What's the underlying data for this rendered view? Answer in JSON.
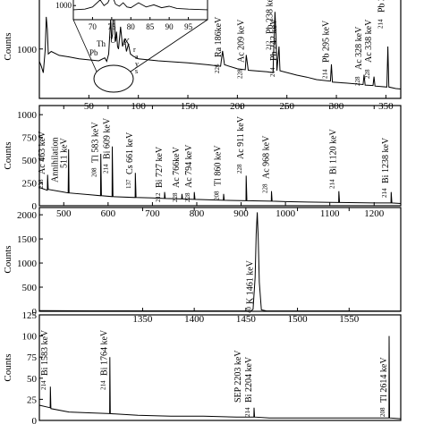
{
  "chart_data": [
    {
      "type": "line",
      "panel": "a",
      "ylabel": "Counts",
      "xlim": [
        0,
        365
      ],
      "ylim": [
        0,
        2100
      ],
      "x_ticks": [
        50,
        100,
        150,
        200,
        250,
        300,
        350
      ],
      "y_ticks": [
        1000
      ],
      "series": [
        {
          "points": [
            [
              0,
              750
            ],
            [
              2,
              650
            ],
            [
              4,
              520
            ],
            [
              6,
              1000
            ],
            [
              7,
              1650
            ],
            [
              8,
              1400
            ],
            [
              9,
              900
            ],
            [
              12,
              950
            ],
            [
              20,
              870
            ],
            [
              30,
              840
            ],
            [
              40,
              800
            ],
            [
              50,
              780
            ],
            [
              60,
              760
            ],
            [
              66,
              820
            ],
            [
              68,
              750
            ],
            [
              70,
              900
            ],
            [
              72,
              1600
            ],
            [
              73,
              1200
            ],
            [
              74,
              1300
            ],
            [
              75,
              2100
            ],
            [
              76,
              1500
            ],
            [
              77,
              1150
            ],
            [
              78,
              1350
            ],
            [
              79,
              1050
            ],
            [
              80,
              1000
            ],
            [
              82,
              1450
            ],
            [
              84,
              1050
            ],
            [
              86,
              1200
            ],
            [
              88,
              950
            ],
            [
              90,
              1100
            ],
            [
              92,
              900
            ],
            [
              95,
              850
            ],
            [
              100,
              800
            ],
            [
              120,
              760
            ],
            [
              150,
              720
            ],
            [
              170,
              680
            ],
            [
              183,
              650
            ],
            [
              185,
              960
            ],
            [
              187,
              680
            ],
            [
              200,
              600
            ],
            [
              208,
              580
            ],
            [
              209,
              880
            ],
            [
              211,
              570
            ],
            [
              230,
              540
            ],
            [
              236,
              520
            ],
            [
              238,
              1750
            ],
            [
              239,
              1300
            ],
            [
              240,
              560
            ],
            [
              242,
              1050
            ],
            [
              243,
              560
            ],
            [
              260,
              470
            ],
            [
              270,
              430
            ],
            [
              280,
              380
            ],
            [
              294,
              350
            ],
            [
              295,
              690
            ],
            [
              296,
              330
            ],
            [
              310,
              310
            ],
            [
              327,
              280
            ],
            [
              328,
              480
            ],
            [
              329,
              270
            ],
            [
              337,
              260
            ],
            [
              338,
              440
            ],
            [
              339,
              250
            ],
            [
              345,
              240
            ],
            [
              351,
              230
            ],
            [
              352,
              1050
            ],
            [
              353,
              230
            ],
            [
              360,
              200
            ],
            [
              365,
              190
            ]
          ]
        }
      ],
      "inset": {
        "xlim": [
          65,
          100
        ],
        "ylim": [
          0,
          1900
        ],
        "x_ticks": [
          70,
          75,
          80,
          85,
          90,
          95
        ],
        "y_ticks": [
          1000
        ],
        "points": [
          [
            65,
            700
          ],
          [
            68,
            750
          ],
          [
            70,
            900
          ],
          [
            72,
            1400
          ],
          [
            73,
            1000
          ],
          [
            74,
            1200
          ],
          [
            75,
            1800
          ],
          [
            76,
            1100
          ],
          [
            77,
            950
          ],
          [
            78,
            1200
          ],
          [
            79,
            900
          ],
          [
            80,
            850
          ],
          [
            82,
            1200
          ],
          [
            84,
            900
          ],
          [
            86,
            1050
          ],
          [
            88,
            850
          ],
          [
            90,
            950
          ],
          [
            92,
            800
          ],
          [
            95,
            750
          ],
          [
            100,
            700
          ]
        ]
      },
      "annotations": [
        "Pb",
        "Th",
        "U",
        "X",
        "r",
        "a",
        "y",
        "s",
        "Ra 186keV",
        "Ac 209 keV",
        "Pb 238 keV",
        "Pb 242 keV",
        "Pb 295 keV",
        "Ac 328 keV",
        "Ac 338 keV",
        "Pb 351 keV"
      ],
      "superscripts": [
        "226",
        "228",
        "212",
        "214",
        "214",
        "228",
        "228",
        "214"
      ]
    },
    {
      "type": "line",
      "panel": "b",
      "ylabel": "Counts",
      "xlim": [
        445,
        1260
      ],
      "ylim": [
        0,
        1100
      ],
      "x_ticks": [
        500,
        600,
        700,
        800,
        900,
        1000,
        1100,
        1200
      ],
      "y_ticks": [
        0,
        250,
        500,
        750,
        1000
      ],
      "series": [
        {
          "points": [
            [
              445,
              200
            ],
            [
              463,
              170
            ],
            [
              463.5,
              340
            ],
            [
              465,
              180
            ],
            [
              500,
              150
            ],
            [
              510,
              140
            ],
            [
              511,
              620
            ],
            [
              512,
              140
            ],
            [
              560,
              120
            ],
            [
              583,
              110
            ],
            [
              583.5,
              570
            ],
            [
              585,
              110
            ],
            [
              609,
              100
            ],
            [
              609.5,
              650
            ],
            [
              611,
              100
            ],
            [
              661,
              90
            ],
            [
              661.5,
              360
            ],
            [
              663,
              90
            ],
            [
              700,
              85
            ],
            [
              727,
              80
            ],
            [
              727.5,
              150
            ],
            [
              729,
              80
            ],
            [
              766,
              75
            ],
            [
              766.5,
              130
            ],
            [
              768,
              75
            ],
            [
              794,
              70
            ],
            [
              794.5,
              150
            ],
            [
              796,
              70
            ],
            [
              860,
              60
            ],
            [
              860.5,
              130
            ],
            [
              862,
              60
            ],
            [
              911,
              55
            ],
            [
              911.5,
              330
            ],
            [
              913,
              55
            ],
            [
              968,
              50
            ],
            [
              968.5,
              160
            ],
            [
              970,
              50
            ],
            [
              1000,
              45
            ],
            [
              1050,
              40
            ],
            [
              1120,
              35
            ],
            [
              1120.5,
              160
            ],
            [
              1122,
              35
            ],
            [
              1200,
              30
            ],
            [
              1238,
              30
            ],
            [
              1238.5,
              150
            ],
            [
              1240,
              30
            ],
            [
              1260,
              25
            ]
          ]
        }
      ],
      "annotations": [
        "Ac 463 keV",
        "Annihilation 511 keV",
        "Tl 583 keV",
        "Bi 609 keV",
        "Cs 661 keV",
        "Bi 727 keV",
        "Ac 766keV",
        "Ac 794 keV",
        "Tl 860 keV",
        "Ac 911 keV",
        "Ac 968 keV",
        "Bi 1120 keV",
        "Bi 1238 keV"
      ],
      "superscripts": [
        "228",
        "208",
        "214",
        "137",
        "212",
        "228",
        "228",
        "208",
        "228",
        "228",
        "214",
        "214"
      ]
    },
    {
      "type": "line",
      "panel": "c",
      "ylabel": "Counts",
      "xlim": [
        1250,
        1600
      ],
      "ylim": [
        0,
        2150
      ],
      "x_ticks": [
        1350,
        1400,
        1450,
        1500,
        1550
      ],
      "y_ticks": [
        0,
        500,
        1000,
        1500,
        2000
      ],
      "series": [
        {
          "points": [
            [
              1250,
              15
            ],
            [
              1300,
              10
            ],
            [
              1455,
              8
            ],
            [
              1457,
              40
            ],
            [
              1459,
              700
            ],
            [
              1460,
              1600
            ],
            [
              1461,
              2050
            ],
            [
              1462,
              1500
            ],
            [
              1463,
              600
            ],
            [
              1465,
              30
            ],
            [
              1470,
              8
            ],
            [
              1600,
              5
            ]
          ]
        }
      ],
      "annotations": [
        "K 1461 keV"
      ],
      "superscripts": [
        "40"
      ]
    },
    {
      "type": "line",
      "panel": "d",
      "ylabel": "Counts",
      "xlim": [
        1550,
        2650
      ],
      "ylim": [
        0,
        125
      ],
      "y_ticks": [
        0,
        25,
        50,
        75,
        100,
        125
      ],
      "series": [
        {
          "points": [
            [
              1550,
              18
            ],
            [
              1583,
              15
            ],
            [
              1583.5,
              40
            ],
            [
              1585,
              14
            ],
            [
              1640,
              10
            ],
            [
              1700,
              9
            ],
            [
              1764,
              8
            ],
            [
              1764.5,
              75
            ],
            [
              1766,
              8
            ],
            [
              1850,
              6
            ],
            [
              1950,
              5
            ],
            [
              2050,
              5
            ],
            [
              2150,
              4
            ],
            [
              2203,
              4
            ],
            [
              2203.5,
              15
            ],
            [
              2205,
              4
            ],
            [
              2250,
              3
            ],
            [
              2400,
              3
            ],
            [
              2550,
              3
            ],
            [
              2614,
              3
            ],
            [
              2614.5,
              100
            ],
            [
              2616,
              3
            ],
            [
              2650,
              2
            ]
          ]
        }
      ],
      "annotations": [
        "Bi 1583 keV",
        "Bi 1764 keV",
        "SEP 2203 keV",
        "Bi 2204 keV",
        "Tl 2614 keV"
      ],
      "superscripts": [
        "214",
        "214",
        "214",
        "208"
      ]
    }
  ]
}
